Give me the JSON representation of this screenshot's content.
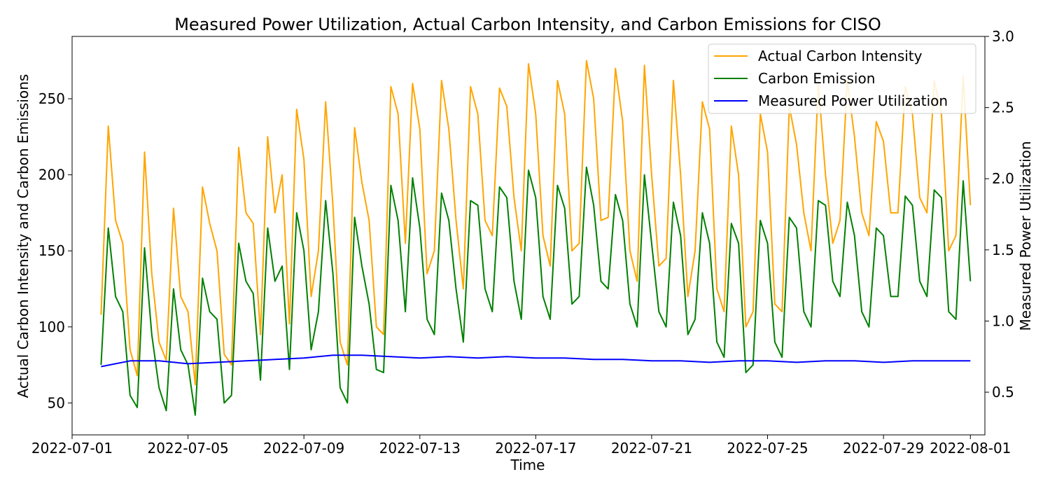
{
  "chart_data": {
    "type": "line",
    "title": "Measured Power Utilization, Actual Carbon Intensity, and Carbon Emissions for CISO",
    "xlabel": "Time",
    "ylabel_left": "Actual Carbon Intensity and Carbon Emissions",
    "ylabel_right": "Measured Power Utilization",
    "xlim": [
      "2022-07-01T00:00",
      "2022-08-01T12:00"
    ],
    "ylim_left": [
      29,
      291
    ],
    "ylim_right": [
      0.2,
      3.0
    ],
    "x_ticks": [
      "2022-07-01",
      "2022-07-05",
      "2022-07-09",
      "2022-07-13",
      "2022-07-17",
      "2022-07-21",
      "2022-07-25",
      "2022-07-29",
      "2022-08-01"
    ],
    "y_ticks_left": [
      50,
      100,
      150,
      200,
      250
    ],
    "y_ticks_right": [
      0.5,
      1.0,
      1.5,
      2.0,
      2.5,
      3.0
    ],
    "y_tick_labels_left": [
      "50",
      "100",
      "150",
      "200",
      "250"
    ],
    "y_tick_labels_right": [
      "0.5",
      "1.0",
      "1.5",
      "2.0",
      "2.5",
      "3.0"
    ],
    "grid": false,
    "legend_position": "top-right",
    "series": [
      {
        "name": "Actual Carbon Intensity",
        "axis": "left",
        "color": "#ffa500",
        "x": [
          "2022-07-02T00:00",
          "2022-07-02T06:00",
          "2022-07-02T12:00",
          "2022-07-02T18:00",
          "2022-07-03T00:00",
          "2022-07-03T06:00",
          "2022-07-03T12:00",
          "2022-07-03T18:00",
          "2022-07-04T00:00",
          "2022-07-04T06:00",
          "2022-07-04T12:00",
          "2022-07-04T18:00",
          "2022-07-05T00:00",
          "2022-07-05T06:00",
          "2022-07-05T12:00",
          "2022-07-05T18:00",
          "2022-07-06T00:00",
          "2022-07-06T06:00",
          "2022-07-06T12:00",
          "2022-07-06T18:00",
          "2022-07-07T00:00",
          "2022-07-07T06:00",
          "2022-07-07T12:00",
          "2022-07-07T18:00",
          "2022-07-08T00:00",
          "2022-07-08T06:00",
          "2022-07-08T12:00",
          "2022-07-08T18:00",
          "2022-07-09T00:00",
          "2022-07-09T06:00",
          "2022-07-09T12:00",
          "2022-07-09T18:00",
          "2022-07-10T00:00",
          "2022-07-10T06:00",
          "2022-07-10T12:00",
          "2022-07-10T18:00",
          "2022-07-11T00:00",
          "2022-07-11T06:00",
          "2022-07-11T12:00",
          "2022-07-11T18:00",
          "2022-07-12T00:00",
          "2022-07-12T06:00",
          "2022-07-12T12:00",
          "2022-07-12T18:00",
          "2022-07-13T00:00",
          "2022-07-13T06:00",
          "2022-07-13T12:00",
          "2022-07-13T18:00",
          "2022-07-14T00:00",
          "2022-07-14T06:00",
          "2022-07-14T12:00",
          "2022-07-14T18:00",
          "2022-07-15T00:00",
          "2022-07-15T06:00",
          "2022-07-15T12:00",
          "2022-07-15T18:00",
          "2022-07-16T00:00",
          "2022-07-16T06:00",
          "2022-07-16T12:00",
          "2022-07-16T18:00",
          "2022-07-17T00:00",
          "2022-07-17T06:00",
          "2022-07-17T12:00",
          "2022-07-17T18:00",
          "2022-07-18T00:00",
          "2022-07-18T06:00",
          "2022-07-18T12:00",
          "2022-07-18T18:00",
          "2022-07-19T00:00",
          "2022-07-19T06:00",
          "2022-07-19T12:00",
          "2022-07-19T18:00",
          "2022-07-20T00:00",
          "2022-07-20T06:00",
          "2022-07-20T12:00",
          "2022-07-20T18:00",
          "2022-07-21T00:00",
          "2022-07-21T06:00",
          "2022-07-21T12:00",
          "2022-07-21T18:00",
          "2022-07-22T00:00",
          "2022-07-22T06:00",
          "2022-07-22T12:00",
          "2022-07-22T18:00",
          "2022-07-23T00:00",
          "2022-07-23T06:00",
          "2022-07-23T12:00",
          "2022-07-23T18:00",
          "2022-07-24T00:00",
          "2022-07-24T06:00",
          "2022-07-24T12:00",
          "2022-07-24T18:00",
          "2022-07-25T00:00",
          "2022-07-25T06:00",
          "2022-07-25T12:00",
          "2022-07-25T18:00",
          "2022-07-26T00:00",
          "2022-07-26T06:00",
          "2022-07-26T12:00",
          "2022-07-26T18:00",
          "2022-07-27T00:00",
          "2022-07-27T06:00",
          "2022-07-27T12:00",
          "2022-07-27T18:00",
          "2022-07-28T00:00",
          "2022-07-28T06:00",
          "2022-07-28T12:00",
          "2022-07-28T18:00",
          "2022-07-29T00:00",
          "2022-07-29T06:00",
          "2022-07-29T12:00",
          "2022-07-29T18:00",
          "2022-07-30T00:00",
          "2022-07-30T06:00",
          "2022-07-30T12:00",
          "2022-07-30T18:00",
          "2022-07-31T00:00",
          "2022-07-31T06:00",
          "2022-07-31T12:00",
          "2022-07-31T18:00",
          "2022-08-01T00:00"
        ],
        "values": [
          108,
          232,
          170,
          155,
          85,
          68,
          215,
          135,
          90,
          78,
          178,
          120,
          110,
          62,
          192,
          168,
          150,
          82,
          75,
          218,
          175,
          168,
          95,
          225,
          175,
          200,
          102,
          243,
          210,
          120,
          150,
          248,
          180,
          90,
          75,
          231,
          195,
          170,
          100,
          95,
          258,
          240,
          155,
          260,
          230,
          135,
          150,
          262,
          230,
          170,
          125,
          258,
          240,
          170,
          160,
          257,
          245,
          185,
          150,
          273,
          240,
          160,
          140,
          262,
          240,
          150,
          155,
          275,
          250,
          170,
          172,
          270,
          235,
          150,
          130,
          272,
          200,
          140,
          145,
          262,
          200,
          120,
          150,
          248,
          230,
          125,
          110,
          232,
          200,
          100,
          110,
          240,
          215,
          115,
          110,
          245,
          220,
          175,
          150,
          260,
          200,
          155,
          170,
          262,
          225,
          175,
          160,
          235,
          222,
          175,
          175,
          258,
          240,
          185,
          175,
          262,
          240,
          150,
          160,
          265,
          180
        ]
      },
      {
        "name": "Carbon Emission",
        "axis": "left",
        "color": "#008000",
        "x": [
          "2022-07-02T00:00",
          "2022-07-02T06:00",
          "2022-07-02T12:00",
          "2022-07-02T18:00",
          "2022-07-03T00:00",
          "2022-07-03T06:00",
          "2022-07-03T12:00",
          "2022-07-03T18:00",
          "2022-07-04T00:00",
          "2022-07-04T06:00",
          "2022-07-04T12:00",
          "2022-07-04T18:00",
          "2022-07-05T00:00",
          "2022-07-05T06:00",
          "2022-07-05T12:00",
          "2022-07-05T18:00",
          "2022-07-06T00:00",
          "2022-07-06T06:00",
          "2022-07-06T12:00",
          "2022-07-06T18:00",
          "2022-07-07T00:00",
          "2022-07-07T06:00",
          "2022-07-07T12:00",
          "2022-07-07T18:00",
          "2022-07-08T00:00",
          "2022-07-08T06:00",
          "2022-07-08T12:00",
          "2022-07-08T18:00",
          "2022-07-09T00:00",
          "2022-07-09T06:00",
          "2022-07-09T12:00",
          "2022-07-09T18:00",
          "2022-07-10T00:00",
          "2022-07-10T06:00",
          "2022-07-10T12:00",
          "2022-07-10T18:00",
          "2022-07-11T00:00",
          "2022-07-11T06:00",
          "2022-07-11T12:00",
          "2022-07-11T18:00",
          "2022-07-12T00:00",
          "2022-07-12T06:00",
          "2022-07-12T12:00",
          "2022-07-12T18:00",
          "2022-07-13T00:00",
          "2022-07-13T06:00",
          "2022-07-13T12:00",
          "2022-07-13T18:00",
          "2022-07-14T00:00",
          "2022-07-14T06:00",
          "2022-07-14T12:00",
          "2022-07-14T18:00",
          "2022-07-15T00:00",
          "2022-07-15T06:00",
          "2022-07-15T12:00",
          "2022-07-15T18:00",
          "2022-07-16T00:00",
          "2022-07-16T06:00",
          "2022-07-16T12:00",
          "2022-07-16T18:00",
          "2022-07-17T00:00",
          "2022-07-17T06:00",
          "2022-07-17T12:00",
          "2022-07-17T18:00",
          "2022-07-18T00:00",
          "2022-07-18T06:00",
          "2022-07-18T12:00",
          "2022-07-18T18:00",
          "2022-07-19T00:00",
          "2022-07-19T06:00",
          "2022-07-19T12:00",
          "2022-07-19T18:00",
          "2022-07-20T00:00",
          "2022-07-20T06:00",
          "2022-07-20T12:00",
          "2022-07-20T18:00",
          "2022-07-21T00:00",
          "2022-07-21T06:00",
          "2022-07-21T12:00",
          "2022-07-21T18:00",
          "2022-07-22T00:00",
          "2022-07-22T06:00",
          "2022-07-22T12:00",
          "2022-07-22T18:00",
          "2022-07-23T00:00",
          "2022-07-23T06:00",
          "2022-07-23T12:00",
          "2022-07-23T18:00",
          "2022-07-24T00:00",
          "2022-07-24T06:00",
          "2022-07-24T12:00",
          "2022-07-24T18:00",
          "2022-07-25T00:00",
          "2022-07-25T06:00",
          "2022-07-25T12:00",
          "2022-07-25T18:00",
          "2022-07-26T00:00",
          "2022-07-26T06:00",
          "2022-07-26T12:00",
          "2022-07-26T18:00",
          "2022-07-27T00:00",
          "2022-07-27T06:00",
          "2022-07-27T12:00",
          "2022-07-27T18:00",
          "2022-07-28T00:00",
          "2022-07-28T06:00",
          "2022-07-28T12:00",
          "2022-07-28T18:00",
          "2022-07-29T00:00",
          "2022-07-29T06:00",
          "2022-07-29T12:00",
          "2022-07-29T18:00",
          "2022-07-30T00:00",
          "2022-07-30T06:00",
          "2022-07-30T12:00",
          "2022-07-30T18:00",
          "2022-07-31T00:00",
          "2022-07-31T06:00",
          "2022-07-31T12:00",
          "2022-07-31T18:00",
          "2022-08-01T00:00"
        ],
        "values": [
          75,
          165,
          120,
          110,
          55,
          47,
          152,
          95,
          60,
          45,
          125,
          85,
          75,
          42,
          132,
          110,
          105,
          50,
          55,
          155,
          130,
          122,
          65,
          165,
          130,
          140,
          72,
          175,
          150,
          85,
          110,
          183,
          135,
          60,
          50,
          172,
          140,
          115,
          72,
          70,
          193,
          170,
          110,
          198,
          165,
          105,
          95,
          188,
          170,
          125,
          90,
          183,
          180,
          125,
          110,
          192,
          185,
          130,
          105,
          203,
          185,
          120,
          105,
          193,
          178,
          115,
          120,
          205,
          180,
          130,
          125,
          187,
          170,
          115,
          100,
          200,
          155,
          110,
          100,
          182,
          160,
          95,
          105,
          175,
          155,
          90,
          80,
          168,
          155,
          70,
          75,
          170,
          155,
          90,
          80,
          172,
          165,
          110,
          100,
          183,
          180,
          130,
          120,
          182,
          160,
          110,
          100,
          165,
          160,
          120,
          120,
          186,
          180,
          130,
          120,
          190,
          185,
          110,
          105,
          196,
          130
        ]
      },
      {
        "name": "Measured Power Utilization",
        "axis": "right",
        "color": "#0000ff",
        "x": [
          "2022-07-02T00:00",
          "2022-07-03T00:00",
          "2022-07-04T00:00",
          "2022-07-05T00:00",
          "2022-07-06T00:00",
          "2022-07-07T00:00",
          "2022-07-08T00:00",
          "2022-07-09T00:00",
          "2022-07-10T00:00",
          "2022-07-11T00:00",
          "2022-07-12T00:00",
          "2022-07-13T00:00",
          "2022-07-14T00:00",
          "2022-07-15T00:00",
          "2022-07-16T00:00",
          "2022-07-17T00:00",
          "2022-07-18T00:00",
          "2022-07-19T00:00",
          "2022-07-20T00:00",
          "2022-07-21T00:00",
          "2022-07-22T00:00",
          "2022-07-23T00:00",
          "2022-07-24T00:00",
          "2022-07-25T00:00",
          "2022-07-26T00:00",
          "2022-07-27T00:00",
          "2022-07-28T00:00",
          "2022-07-29T00:00",
          "2022-07-30T00:00",
          "2022-07-31T00:00",
          "2022-08-01T00:00"
        ],
        "values": [
          0.68,
          0.72,
          0.72,
          0.7,
          0.71,
          0.72,
          0.73,
          0.74,
          0.76,
          0.76,
          0.75,
          0.74,
          0.75,
          0.74,
          0.75,
          0.74,
          0.74,
          0.73,
          0.73,
          0.72,
          0.72,
          0.71,
          0.72,
          0.72,
          0.71,
          0.72,
          0.72,
          0.71,
          0.72,
          0.72,
          0.72
        ]
      }
    ]
  }
}
